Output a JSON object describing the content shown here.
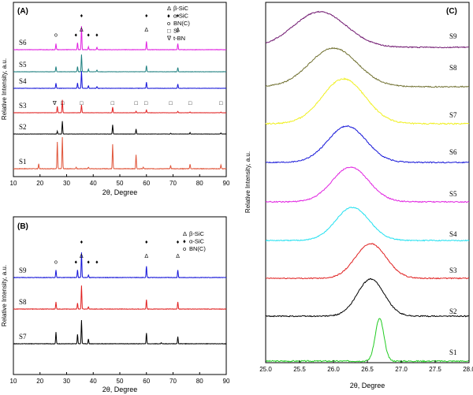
{
  "chart_data": [
    {
      "panel_label": "(A)",
      "type": "line",
      "xlabel": "2θ, Degree",
      "ylabel": "Relative Intensity, a.u.",
      "xlim": [
        10,
        90
      ],
      "xticks": [
        10,
        20,
        30,
        40,
        50,
        60,
        70,
        80,
        90
      ],
      "legend_title": "",
      "legend": [
        {
          "symbol": "Δ",
          "text": "β-SiC"
        },
        {
          "symbol": "♦",
          "text": "α-SiC"
        },
        {
          "symbol": "o",
          "text": "BN(C)"
        },
        {
          "symbol": "□",
          "text": "Si"
        },
        {
          "symbol": "∇",
          "text": "t-BN"
        }
      ],
      "series": [
        {
          "name": "S1",
          "color": "#e0553a",
          "peaks": [
            [
              19.5,
              0.15
            ],
            [
              26.5,
              0.85
            ],
            [
              28.4,
              1.0
            ],
            [
              33.6,
              0.05
            ],
            [
              38.2,
              0.05
            ],
            [
              47.3,
              0.78
            ],
            [
              56.1,
              0.45
            ],
            [
              58.8,
              0.05
            ],
            [
              69.1,
              0.1
            ],
            [
              76.4,
              0.15
            ],
            [
              88.0,
              0.12
            ]
          ]
        },
        {
          "name": "S2",
          "color": "#000000",
          "peaks": [
            [
              26.5,
              0.2
            ],
            [
              28.4,
              0.9
            ],
            [
              47.3,
              0.65
            ],
            [
              56.1,
              0.35
            ],
            [
              69.1,
              0.06
            ],
            [
              76.4,
              0.1
            ],
            [
              88.0,
              0.08
            ]
          ]
        },
        {
          "name": "S3",
          "color": "#e02020",
          "peaks": [
            [
              26.5,
              0.45
            ],
            [
              28.4,
              0.9
            ],
            [
              35.6,
              0.55
            ],
            [
              47.3,
              0.4
            ],
            [
              56.1,
              0.1
            ],
            [
              60.0,
              0.2
            ],
            [
              71.8,
              0.1
            ],
            [
              76.4,
              0.05
            ],
            [
              88.0,
              0.05
            ]
          ]
        },
        {
          "name": "S4",
          "color": "#1515d8",
          "peaks": [
            [
              26.0,
              0.3
            ],
            [
              34.1,
              0.3
            ],
            [
              35.6,
              1.0
            ],
            [
              38.2,
              0.15
            ],
            [
              41.4,
              0.1
            ],
            [
              60.0,
              0.35
            ],
            [
              71.8,
              0.25
            ]
          ]
        },
        {
          "name": "S5",
          "color": "#1f8080",
          "peaks": [
            [
              26.0,
              0.3
            ],
            [
              34.1,
              0.3
            ],
            [
              35.6,
              1.0
            ],
            [
              38.2,
              0.15
            ],
            [
              41.4,
              0.1
            ],
            [
              60.0,
              0.35
            ],
            [
              71.8,
              0.25
            ]
          ]
        },
        {
          "name": "S6",
          "color": "#e020e0",
          "peaks": [
            [
              26.0,
              0.25
            ],
            [
              34.1,
              0.3
            ],
            [
              35.6,
              1.0
            ],
            [
              38.2,
              0.12
            ],
            [
              41.4,
              0.1
            ],
            [
              60.0,
              0.35
            ],
            [
              71.8,
              0.25
            ]
          ]
        }
      ],
      "annotations": [
        {
          "text": "o",
          "x": 26,
          "row": "S6"
        },
        {
          "text": "♦",
          "x": 33.5,
          "row": "S6"
        },
        {
          "text": "♦",
          "x": 35.6,
          "row": "S6",
          "stack": "top"
        },
        {
          "text": "Δ",
          "x": 35.6,
          "row": "S6"
        },
        {
          "text": "♦",
          "x": 38.2,
          "row": "S6"
        },
        {
          "text": "♦",
          "x": 41.4,
          "row": "S6"
        },
        {
          "text": "♦",
          "x": 60,
          "row": "S6",
          "stack": "top"
        },
        {
          "text": "Δ",
          "x": 60,
          "row": "S6"
        },
        {
          "text": "♦",
          "x": 71.8,
          "row": "S6",
          "stack": "top"
        },
        {
          "text": "Δ",
          "x": 71.8,
          "row": "S6"
        },
        {
          "text": "∇",
          "x": 25.5,
          "row": "S3"
        },
        {
          "text": "□",
          "x": 28.4,
          "row": "S3"
        },
        {
          "text": "□",
          "x": 35.6,
          "row": "S3"
        },
        {
          "text": "□",
          "x": 47.3,
          "row": "S3"
        },
        {
          "text": "□",
          "x": 56.1,
          "row": "S3"
        },
        {
          "text": "□",
          "x": 59.8,
          "row": "S3"
        },
        {
          "text": "□",
          "x": 69.1,
          "row": "S3"
        },
        {
          "text": "□",
          "x": 76.4,
          "row": "S3"
        },
        {
          "text": "□",
          "x": 88.0,
          "row": "S3"
        }
      ]
    },
    {
      "panel_label": "(B)",
      "type": "line",
      "xlabel": "2θ, Degree",
      "ylabel": "Relative Intensity, a.u.",
      "xlim": [
        10,
        90
      ],
      "xticks": [
        10,
        20,
        30,
        40,
        50,
        60,
        70,
        80,
        90
      ],
      "legend": [
        {
          "symbol": "Δ",
          "text": "β-SiC"
        },
        {
          "symbol": "♦",
          "text": "α-SiC"
        },
        {
          "symbol": "o",
          "text": "BN(C)"
        }
      ],
      "series": [
        {
          "name": "S7",
          "color": "#000000",
          "peaks": [
            [
              26.0,
              0.5
            ],
            [
              34.1,
              0.4
            ],
            [
              35.6,
              1.0
            ],
            [
              38.2,
              0.2
            ],
            [
              60.0,
              0.45
            ],
            [
              65.6,
              0.05
            ],
            [
              71.8,
              0.3
            ]
          ]
        },
        {
          "name": "S8",
          "color": "#e02020",
          "peaks": [
            [
              26.0,
              0.3
            ],
            [
              34.1,
              0.25
            ],
            [
              35.6,
              1.0
            ],
            [
              38.2,
              0.1
            ],
            [
              60.0,
              0.4
            ],
            [
              71.8,
              0.3
            ]
          ]
        },
        {
          "name": "S9",
          "color": "#1515d8",
          "peaks": [
            [
              26.0,
              0.3
            ],
            [
              34.1,
              0.3
            ],
            [
              35.6,
              1.0
            ],
            [
              38.2,
              0.1
            ],
            [
              60.0,
              0.45
            ],
            [
              71.8,
              0.3
            ]
          ]
        }
      ],
      "annotations": [
        {
          "text": "o",
          "x": 26,
          "row": "S9"
        },
        {
          "text": "♦",
          "x": 33.5,
          "row": "S9"
        },
        {
          "text": "♦",
          "x": 35.6,
          "row": "S9",
          "stack": "top"
        },
        {
          "text": "Δ",
          "x": 35.6,
          "row": "S9"
        },
        {
          "text": "♦",
          "x": 38.2,
          "row": "S9"
        },
        {
          "text": "♦",
          "x": 41.4,
          "row": "S9"
        },
        {
          "text": "♦",
          "x": 60,
          "row": "S9",
          "stack": "top"
        },
        {
          "text": "Δ",
          "x": 60,
          "row": "S9"
        },
        {
          "text": "♦",
          "x": 71.8,
          "row": "S9",
          "stack": "top"
        },
        {
          "text": "Δ",
          "x": 71.8,
          "row": "S9"
        }
      ]
    },
    {
      "panel_label": "(C)",
      "type": "line",
      "xlabel": "2θ, Degree",
      "ylabel": "Relative Intensity, a.u.",
      "xlim": [
        25.0,
        28.0
      ],
      "xticks": [
        25.0,
        25.5,
        26.0,
        26.5,
        27.0,
        27.5,
        28.0
      ],
      "series": [
        {
          "name": "S1",
          "color": "#22cc22",
          "peak_x": 26.68,
          "width": 0.09
        },
        {
          "name": "S2",
          "color": "#000000",
          "peak_x": 26.55,
          "width": 0.28
        },
        {
          "name": "S3",
          "color": "#e02020",
          "peak_x": 26.55,
          "width": 0.32
        },
        {
          "name": "S4",
          "color": "#20e0f0",
          "peak_x": 26.28,
          "width": 0.35
        },
        {
          "name": "S5",
          "color": "#e020e0",
          "peak_x": 26.25,
          "width": 0.38
        },
        {
          "name": "S6",
          "color": "#1515d8",
          "peak_x": 26.2,
          "width": 0.4
        },
        {
          "name": "S7",
          "color": "#f0f020",
          "peak_x": 26.15,
          "width": 0.45
        },
        {
          "name": "S8",
          "color": "#707030",
          "peak_x": 26.0,
          "width": 0.5
        },
        {
          "name": "S9",
          "color": "#701870",
          "peak_x": 25.8,
          "width": 0.55
        }
      ]
    }
  ]
}
